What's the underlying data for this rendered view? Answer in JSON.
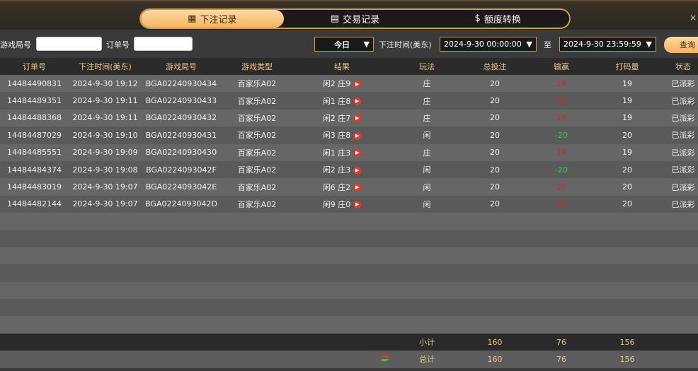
{
  "tabs": [
    {
      "label": "下注记录",
      "icon": "calendar-icon",
      "active": true
    },
    {
      "label": "交易记录",
      "icon": "document-icon"
    },
    {
      "label": "额度转换",
      "icon": "money-bag-icon"
    }
  ],
  "filters": {
    "game_round_label": "游戏局号",
    "game_round_value": "",
    "order_label": "订单号",
    "order_value": "",
    "range": "今日",
    "time_label": "下注时间(美东)",
    "start": "2024-9-30 00:00:00",
    "to_label": "至",
    "end": "2024-9-30 23:59:59",
    "query": "查询"
  },
  "columns": [
    "订单号",
    "下注时间(美东)",
    "游戏局号",
    "游戏类型",
    "结果",
    "玩法",
    "总投注",
    "输赢",
    "打码量",
    "状态"
  ],
  "rows": [
    [
      "14484490831",
      "2024-9-30 19:12",
      "BGA02240930434",
      "百家乐A02",
      "闲2 庄9",
      "庄",
      "20",
      "19",
      "19",
      "已派彩"
    ],
    [
      "14484489351",
      "2024-9-30 19:11",
      "BGA02240930433",
      "百家乐A02",
      "闲1 庄8",
      "庄",
      "20",
      "19",
      "19",
      "已派彩"
    ],
    [
      "14484488368",
      "2024-9-30 19:11",
      "BGA02240930432",
      "百家乐A02",
      "闲2 庄7",
      "庄",
      "20",
      "19",
      "19",
      "已派彩"
    ],
    [
      "14484487029",
      "2024-9-30 19:10",
      "BGA02240930431",
      "百家乐A02",
      "闲3 庄8",
      "闲",
      "20",
      "-20",
      "20",
      "已派彩"
    ],
    [
      "14484485551",
      "2024-9-30 19:09",
      "BGA02240930430",
      "百家乐A02",
      "闲1 庄3",
      "庄",
      "20",
      "19",
      "19",
      "已派彩"
    ],
    [
      "14484484374",
      "2024-9-30 19:08",
      "BGA0224093042F",
      "百家乐A02",
      "闲2 庄3",
      "闲",
      "20",
      "-20",
      "20",
      "已派彩"
    ],
    [
      "14484483019",
      "2024-9-30 19:07",
      "BGA0224093042E",
      "百家乐A02",
      "闲6 庄2",
      "闲",
      "20",
      "20",
      "20",
      "已派彩"
    ],
    [
      "14484482144",
      "2024-9-30 19:07",
      "BGA0224093042D",
      "百家乐A02",
      "闲9 庄0",
      "闲",
      "20",
      "20",
      "20",
      "已派彩"
    ]
  ],
  "subtotal": {
    "label": "小计",
    "bet": "160",
    "winloss": "76",
    "valid": "156"
  },
  "total": {
    "label": "总计",
    "bet": "160",
    "winloss": "76",
    "valid": "156"
  },
  "colors": {
    "accent": "#f3b463",
    "loss": "#d0262a",
    "win": "#2ecc40"
  }
}
